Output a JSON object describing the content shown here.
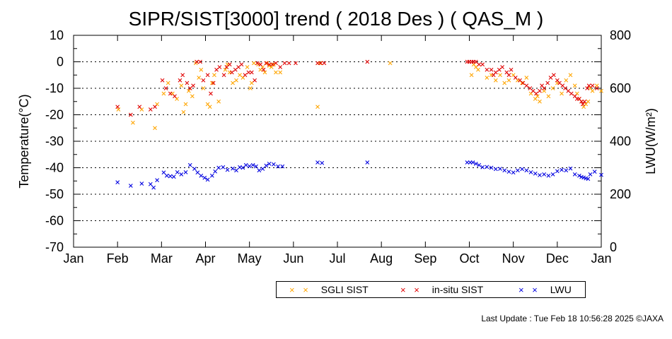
{
  "chart_data": {
    "type": "scatter",
    "title": "SIPR/SIST[3000] trend ( 2018 Des ) ( QAS_M )",
    "ylabel": "Temperature(°C)",
    "y2label": "LWU(W/m²)",
    "xlim": [
      0,
      12
    ],
    "ylim": [
      -70,
      10
    ],
    "y2lim": [
      0,
      800
    ],
    "x_ticks": [
      "Jan",
      "Feb",
      "Mar",
      "Apr",
      "May",
      "Jun",
      "Jul",
      "Aug",
      "Sep",
      "Oct",
      "Nov",
      "Dec",
      "Jan"
    ],
    "y_ticks": [
      10,
      0,
      -10,
      -20,
      -30,
      -40,
      -50,
      -60,
      -70
    ],
    "y2_ticks": [
      800,
      600,
      400,
      200,
      0
    ],
    "grid": "dotted horizontal",
    "legend_position": "bottom",
    "series": [
      {
        "name": "SGLI SIST",
        "axis": "left",
        "color": "#ffa500",
        "x": [
          1.02,
          1.35,
          1.55,
          1.85,
          1.9,
          2.05,
          2.15,
          2.25,
          2.35,
          2.45,
          2.5,
          2.55,
          2.62,
          2.7,
          2.78,
          2.85,
          2.9,
          2.95,
          3.05,
          3.1,
          3.15,
          3.2,
          3.3,
          3.45,
          3.5,
          3.55,
          3.62,
          3.7,
          3.78,
          3.85,
          3.95,
          4.02,
          4.05,
          4.1,
          4.2,
          4.25,
          4.3,
          4.35,
          4.4,
          4.45,
          4.5,
          4.55,
          4.6,
          4.7,
          5.55,
          5.6,
          7.2,
          9.05,
          9.1,
          9.15,
          9.2,
          9.4,
          9.5,
          9.6,
          9.7,
          9.8,
          9.9,
          10.0,
          10.1,
          10.2,
          10.3,
          10.4,
          10.5,
          10.55,
          10.6,
          10.7,
          10.8,
          10.9,
          11.0,
          11.1,
          11.2,
          11.3,
          11.4,
          11.45,
          11.5,
          11.55,
          11.6,
          11.65,
          11.7,
          11.75,
          11.8,
          11.9,
          12.0
        ],
        "y": [
          -18,
          -23,
          -18,
          -25,
          -16,
          -12,
          -8,
          -12,
          -14,
          -9,
          -19,
          -16,
          -11,
          -13,
          -0.5,
          -6,
          -3,
          -10,
          -16,
          -17,
          -8,
          -5,
          -15,
          -3,
          -1,
          -4,
          -8,
          -7,
          -5,
          -6,
          -2,
          -10,
          -8,
          -0.5,
          -1,
          -3,
          -2,
          -4,
          -0.5,
          -1.5,
          -2,
          -1,
          -4,
          -4,
          -17,
          -0.5,
          -0.5,
          -5,
          -1,
          -2,
          -3,
          -6,
          -5,
          -7,
          -5,
          -8,
          -7,
          -5,
          -7,
          -8,
          -6,
          -12,
          -14,
          -13,
          -15,
          -11,
          -13,
          -10,
          -8,
          -12,
          -7,
          -5,
          -9,
          -12,
          -14,
          -15,
          -17,
          -16,
          -15,
          -10,
          -11,
          -9,
          -11
        ]
      },
      {
        "name": "in-situ SIST",
        "axis": "left",
        "color": "#e00000",
        "x": [
          1.0,
          1.3,
          1.5,
          1.75,
          1.85,
          2.02,
          2.1,
          2.2,
          2.3,
          2.42,
          2.48,
          2.58,
          2.65,
          2.72,
          2.8,
          2.88,
          2.95,
          3.05,
          3.12,
          3.18,
          3.25,
          3.32,
          3.42,
          3.48,
          3.55,
          3.6,
          3.68,
          3.75,
          3.82,
          3.9,
          3.98,
          4.05,
          4.12,
          4.18,
          4.25,
          4.32,
          4.38,
          4.45,
          4.52,
          4.6,
          4.7,
          4.8,
          4.9,
          5.05,
          5.55,
          5.62,
          5.7,
          6.68,
          8.95,
          9.0,
          9.05,
          9.1,
          9.15,
          9.22,
          9.3,
          9.4,
          9.5,
          9.55,
          9.6,
          9.68,
          9.75,
          9.85,
          9.9,
          9.95,
          10.05,
          10.15,
          10.22,
          10.3,
          10.38,
          10.45,
          10.52,
          10.6,
          10.65,
          10.7,
          10.78,
          10.85,
          10.92,
          11.0,
          11.05,
          11.12,
          11.18,
          11.25,
          11.32,
          11.4,
          11.45,
          11.5,
          11.55,
          11.58,
          11.62,
          11.68,
          11.72,
          11.8,
          11.9
        ],
        "y": [
          -17,
          -20,
          -17,
          -18,
          -17,
          -7,
          -10,
          -12,
          -13,
          -7,
          -5,
          -8,
          -10,
          -9,
          0,
          0,
          -7,
          -5,
          -12,
          -8,
          -3,
          -2,
          -5,
          -2,
          -1,
          -4,
          -3,
          -2,
          -1,
          -5,
          -4,
          -4,
          -7,
          -0.5,
          -1,
          -3,
          -0.5,
          -1,
          -1,
          -0.5,
          -2,
          -0.5,
          -0.5,
          -0.5,
          -0.5,
          -0.5,
          -0.5,
          0,
          0,
          0,
          0,
          0,
          0,
          -1,
          -1,
          -3,
          -3,
          -5,
          -4,
          -3,
          -2,
          -4,
          -5,
          -3,
          -6,
          -7,
          -8,
          -9,
          -10,
          -11,
          -12,
          -11,
          -9,
          -10,
          -8,
          -6,
          -5,
          -7,
          -8,
          -9,
          -10,
          -11,
          -12,
          -13,
          -14,
          -14,
          -15,
          -16,
          -15,
          -10,
          -9,
          -9,
          -10
        ]
      },
      {
        "name": "LWU",
        "axis": "right",
        "color": "#0000e0",
        "x": [
          1.0,
          1.3,
          1.55,
          1.75,
          1.82,
          1.9,
          2.05,
          2.12,
          2.2,
          2.28,
          2.36,
          2.45,
          2.55,
          2.65,
          2.75,
          2.82,
          2.9,
          2.98,
          3.05,
          3.15,
          3.22,
          3.3,
          3.4,
          3.5,
          3.62,
          3.7,
          3.78,
          3.85,
          3.92,
          4.0,
          4.08,
          4.15,
          4.22,
          4.3,
          4.38,
          4.45,
          4.55,
          4.65,
          4.75,
          5.55,
          5.65,
          6.68,
          8.95,
          9.02,
          9.08,
          9.15,
          9.22,
          9.3,
          9.4,
          9.5,
          9.6,
          9.7,
          9.8,
          9.9,
          10.0,
          10.1,
          10.2,
          10.3,
          10.4,
          10.5,
          10.6,
          10.7,
          10.8,
          10.9,
          11.0,
          11.1,
          11.2,
          11.3,
          11.4,
          11.5,
          11.55,
          11.6,
          11.65,
          11.7,
          11.75,
          11.85,
          12.0
        ],
        "y": [
          245,
          232,
          240,
          238,
          225,
          253,
          282,
          270,
          268,
          266,
          283,
          275,
          283,
          310,
          296,
          282,
          270,
          262,
          255,
          270,
          286,
          300,
          302,
          292,
          297,
          290,
          302,
          300,
          310,
          306,
          310,
          305,
          290,
          296,
          308,
          315,
          313,
          305,
          305,
          320,
          318,
          320,
          320,
          320,
          320,
          315,
          310,
          302,
          303,
          300,
          295,
          296,
          290,
          285,
          282,
          290,
          295,
          290,
          283,
          278,
          272,
          275,
          270,
          275,
          287,
          292,
          290,
          297,
          275,
          270,
          265,
          263,
          260,
          258,
          275,
          285,
          273
        ]
      }
    ]
  },
  "legend": {
    "sgli": "SGLI SIST",
    "insitu": "in-situ SIST",
    "lwu": "LWU",
    "marker": "× ×"
  },
  "footer": "Last Update : Tue Feb 18 10:56:28 2025  ©JAXA"
}
